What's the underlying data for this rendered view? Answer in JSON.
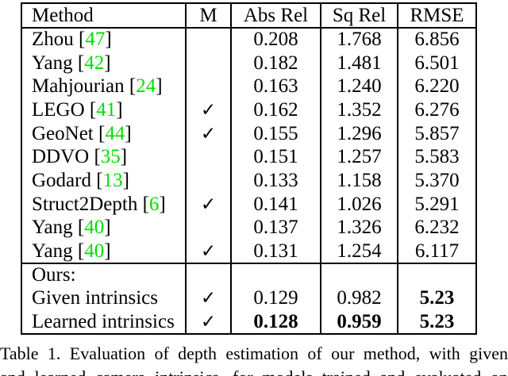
{
  "table": {
    "headers": [
      {
        "key": "method",
        "label": "Method"
      },
      {
        "key": "m",
        "label": "M"
      },
      {
        "key": "abs_rel",
        "label": "Abs Rel"
      },
      {
        "key": "sq_rel",
        "label": "Sq Rel"
      },
      {
        "key": "rmse",
        "label": "RMSE"
      }
    ],
    "checkmark_glyph": "✓",
    "citation_color": "#00dd00",
    "rows": [
      {
        "method": "Zhou",
        "cite": "47",
        "check": false,
        "abs_rel": "0.208",
        "sq_rel": "1.768",
        "rmse": "6.856",
        "bold": [],
        "section_start": false
      },
      {
        "method": "Yang",
        "cite": "42",
        "check": false,
        "abs_rel": "0.182",
        "sq_rel": "1.481",
        "rmse": "6.501",
        "bold": [],
        "section_start": false
      },
      {
        "method": "Mahjourian",
        "cite": "24",
        "check": false,
        "abs_rel": "0.163",
        "sq_rel": "1.240",
        "rmse": "6.220",
        "bold": [],
        "section_start": false
      },
      {
        "method": "LEGO",
        "cite": "41",
        "check": true,
        "abs_rel": "0.162",
        "sq_rel": "1.352",
        "rmse": "6.276",
        "bold": [],
        "section_start": false
      },
      {
        "method": "GeoNet",
        "cite": "44",
        "check": true,
        "abs_rel": "0.155",
        "sq_rel": "1.296",
        "rmse": "5.857",
        "bold": [],
        "section_start": false
      },
      {
        "method": "DDVO",
        "cite": "35",
        "check": false,
        "abs_rel": "0.151",
        "sq_rel": "1.257",
        "rmse": "5.583",
        "bold": [],
        "section_start": false
      },
      {
        "method": "Godard",
        "cite": "13",
        "check": false,
        "abs_rel": "0.133",
        "sq_rel": "1.158",
        "rmse": "5.370",
        "bold": [],
        "section_start": false
      },
      {
        "method": "Struct2Depth",
        "cite": "6",
        "check": true,
        "abs_rel": "0.141",
        "sq_rel": "1.026",
        "rmse": "5.291",
        "bold": [],
        "section_start": false
      },
      {
        "method": "Yang",
        "cite": "40",
        "check": false,
        "abs_rel": "0.137",
        "sq_rel": "1.326",
        "rmse": "6.232",
        "bold": [],
        "section_start": false
      },
      {
        "method": "Yang",
        "cite": "40",
        "check": true,
        "abs_rel": "0.131",
        "sq_rel": "1.254",
        "rmse": "6.117",
        "bold": [],
        "section_start": false
      },
      {
        "method": "Ours:",
        "cite": null,
        "check": false,
        "abs_rel": "",
        "sq_rel": "",
        "rmse": "",
        "bold": [],
        "section_start": true
      },
      {
        "method": "Given intrinsics",
        "cite": null,
        "check": true,
        "abs_rel": "0.129",
        "sq_rel": "0.982",
        "rmse": "5.23",
        "bold": [
          "rmse"
        ],
        "section_start": false
      },
      {
        "method": "Learned intrinsics",
        "cite": null,
        "check": true,
        "abs_rel": "0.128",
        "sq_rel": "0.959",
        "rmse": "5.23",
        "bold": [
          "abs_rel",
          "sq_rel",
          "rmse"
        ],
        "section_start": false
      }
    ]
  },
  "caption": {
    "line1": "Table 1. Evaluation of depth estimation of our method, with given",
    "line2": "and learned camera intrinsics, for models trained and evaluated on"
  }
}
